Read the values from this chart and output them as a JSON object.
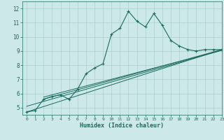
{
  "xlabel": "Humidex (Indice chaleur)",
  "background_color": "#cce8e8",
  "grid_color": "#aacfcf",
  "line_color": "#1a6b5e",
  "xlim": [
    -0.5,
    23
  ],
  "ylim": [
    4.5,
    12.5
  ],
  "xticks": [
    0,
    1,
    2,
    3,
    4,
    5,
    6,
    7,
    8,
    9,
    10,
    11,
    12,
    13,
    14,
    15,
    16,
    17,
    18,
    19,
    20,
    21,
    22,
    23
  ],
  "yticks": [
    5,
    6,
    7,
    8,
    9,
    10,
    11,
    12
  ],
  "series": [
    {
      "x": [
        0,
        1,
        2,
        3,
        4,
        5,
        6,
        7,
        8,
        9,
        10,
        11,
        12,
        13,
        14,
        15,
        16,
        17,
        18,
        19,
        20,
        21,
        22,
        23
      ],
      "y": [
        4.7,
        4.8,
        5.6,
        5.8,
        5.9,
        5.6,
        6.3,
        7.4,
        7.8,
        8.1,
        10.2,
        10.6,
        11.8,
        11.1,
        10.7,
        11.65,
        10.8,
        9.75,
        9.35,
        9.1,
        9.0,
        9.1,
        9.1,
        9.1
      ],
      "has_markers": true
    },
    {
      "x": [
        0,
        23
      ],
      "y": [
        4.7,
        9.1
      ],
      "has_markers": false
    },
    {
      "x": [
        2,
        23
      ],
      "y": [
        5.6,
        9.1
      ],
      "has_markers": false
    },
    {
      "x": [
        2,
        23
      ],
      "y": [
        5.75,
        9.05
      ],
      "has_markers": false
    },
    {
      "x": [
        0,
        23
      ],
      "y": [
        5.1,
        9.05
      ],
      "has_markers": false
    }
  ]
}
